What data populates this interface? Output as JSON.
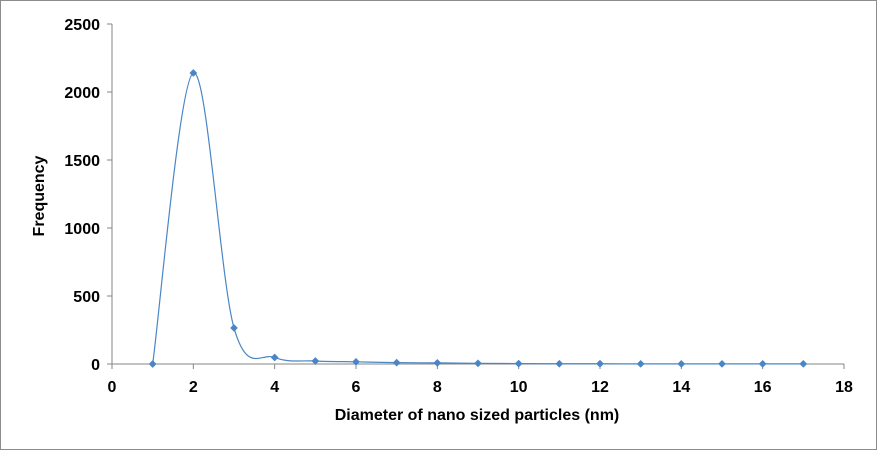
{
  "chart_data": {
    "type": "scatter",
    "title": "",
    "xlabel": "Diameter of nano sized particles (nm)",
    "ylabel": "Frequency",
    "xlim": [
      0,
      18
    ],
    "ylim": [
      0,
      2500
    ],
    "xticks": [
      0,
      2,
      4,
      6,
      8,
      10,
      12,
      14,
      16,
      18
    ],
    "yticks": [
      0,
      500,
      1000,
      1500,
      2000,
      2500
    ],
    "grid": false,
    "legend": "none",
    "series": [
      {
        "marker": "diamond",
        "line": "smoothed",
        "color": "#4a86c5",
        "points": [
          {
            "x": 1,
            "y": 0
          },
          {
            "x": 2,
            "y": 2140
          },
          {
            "x": 3,
            "y": 265
          },
          {
            "x": 4,
            "y": 48
          },
          {
            "x": 5,
            "y": 22
          },
          {
            "x": 6,
            "y": 16
          },
          {
            "x": 7,
            "y": 10
          },
          {
            "x": 8,
            "y": 8
          },
          {
            "x": 9,
            "y": 5
          },
          {
            "x": 10,
            "y": 3
          },
          {
            "x": 11,
            "y": 2
          },
          {
            "x": 12,
            "y": 2
          },
          {
            "x": 13,
            "y": 1
          },
          {
            "x": 14,
            "y": 1
          },
          {
            "x": 15,
            "y": 1
          },
          {
            "x": 16,
            "y": 1
          },
          {
            "x": 17,
            "y": 1
          }
        ]
      }
    ]
  }
}
